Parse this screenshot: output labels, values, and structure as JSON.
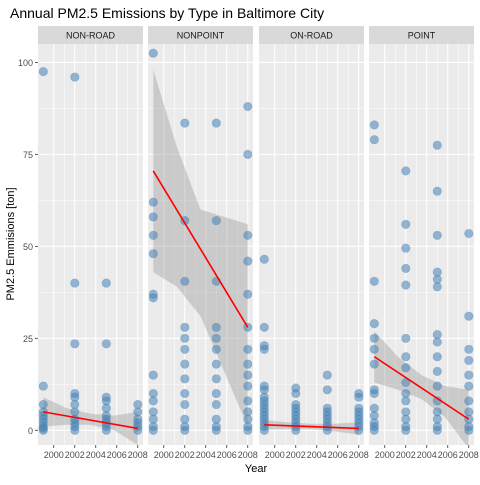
{
  "chart_data": {
    "type": "scatter",
    "title": "Annual PM2.5 Emissions by Type in Baltimore City",
    "xlabel": "Year",
    "ylabel": "PM2.5 Emmisions [ton]",
    "x_ticks": [
      "2000",
      "2002",
      "2004",
      "2006",
      "2008"
    ],
    "x_tick_values": [
      2000,
      2002,
      2004,
      2006,
      2008
    ],
    "y_ticks": [
      "0",
      "25",
      "50",
      "75",
      "100"
    ],
    "y_tick_values": [
      0,
      25,
      50,
      75,
      100
    ],
    "xlim": [
      1998.5,
      2008.5
    ],
    "ylim": [
      -4,
      105
    ],
    "point_color": "#4682B4",
    "fit_color": "#FF0000",
    "band_color": "#999999",
    "panel_bg": "#EBEBEB",
    "strip_bg": "#D9D9D9",
    "panels": [
      {
        "name": "NON-ROAD",
        "points": [
          {
            "x": 1999,
            "y": 97.5
          },
          {
            "x": 1999,
            "y": 12
          },
          {
            "x": 1999,
            "y": 7
          },
          {
            "x": 1999,
            "y": 5
          },
          {
            "x": 1999,
            "y": 4
          },
          {
            "x": 1999,
            "y": 3
          },
          {
            "x": 1999,
            "y": 2
          },
          {
            "x": 1999,
            "y": 1
          },
          {
            "x": 1999,
            "y": 0.5
          },
          {
            "x": 1999,
            "y": 0
          },
          {
            "x": 2002,
            "y": 96
          },
          {
            "x": 2002,
            "y": 40
          },
          {
            "x": 2002,
            "y": 23.5
          },
          {
            "x": 2002,
            "y": 10
          },
          {
            "x": 2002,
            "y": 9
          },
          {
            "x": 2002,
            "y": 7
          },
          {
            "x": 2002,
            "y": 5
          },
          {
            "x": 2002,
            "y": 3
          },
          {
            "x": 2002,
            "y": 2
          },
          {
            "x": 2002,
            "y": 1
          },
          {
            "x": 2002,
            "y": 0
          },
          {
            "x": 2005,
            "y": 40
          },
          {
            "x": 2005,
            "y": 23.5
          },
          {
            "x": 2005,
            "y": 9
          },
          {
            "x": 2005,
            "y": 8
          },
          {
            "x": 2005,
            "y": 6
          },
          {
            "x": 2005,
            "y": 4
          },
          {
            "x": 2005,
            "y": 3
          },
          {
            "x": 2005,
            "y": 2
          },
          {
            "x": 2005,
            "y": 1
          },
          {
            "x": 2005,
            "y": 0
          },
          {
            "x": 2008,
            "y": 7
          },
          {
            "x": 2008,
            "y": 5
          },
          {
            "x": 2008,
            "y": 3
          },
          {
            "x": 2008,
            "y": 2
          },
          {
            "x": 2008,
            "y": 1
          },
          {
            "x": 2008,
            "y": 0
          }
        ],
        "fit": {
          "x": [
            1999,
            2008
          ],
          "y": [
            5,
            0.5
          ]
        },
        "band": {
          "x": [
            1999,
            2001.25,
            2003.5,
            2005.75,
            2008
          ],
          "upper": [
            9,
            6,
            4.5,
            4,
            5
          ],
          "lower": [
            1,
            1.5,
            1.5,
            0,
            -4
          ]
        }
      },
      {
        "name": "NONPOINT",
        "points": [
          {
            "x": 1999,
            "y": 102.5
          },
          {
            "x": 1999,
            "y": 62
          },
          {
            "x": 1999,
            "y": 58
          },
          {
            "x": 1999,
            "y": 53
          },
          {
            "x": 1999,
            "y": 48
          },
          {
            "x": 1999,
            "y": 37
          },
          {
            "x": 1999,
            "y": 36
          },
          {
            "x": 1999,
            "y": 15
          },
          {
            "x": 1999,
            "y": 10
          },
          {
            "x": 1999,
            "y": 8
          },
          {
            "x": 1999,
            "y": 5
          },
          {
            "x": 1999,
            "y": 3
          },
          {
            "x": 1999,
            "y": 1
          },
          {
            "x": 1999,
            "y": 0
          },
          {
            "x": 2002,
            "y": 83.5
          },
          {
            "x": 2002,
            "y": 57
          },
          {
            "x": 2002,
            "y": 40.5
          },
          {
            "x": 2002,
            "y": 28
          },
          {
            "x": 2002,
            "y": 25
          },
          {
            "x": 2002,
            "y": 22
          },
          {
            "x": 2002,
            "y": 18
          },
          {
            "x": 2002,
            "y": 14
          },
          {
            "x": 2002,
            "y": 10
          },
          {
            "x": 2002,
            "y": 7
          },
          {
            "x": 2002,
            "y": 3
          },
          {
            "x": 2002,
            "y": 1
          },
          {
            "x": 2002,
            "y": 0
          },
          {
            "x": 2005,
            "y": 83.5
          },
          {
            "x": 2005,
            "y": 57
          },
          {
            "x": 2005,
            "y": 40.5
          },
          {
            "x": 2005,
            "y": 28
          },
          {
            "x": 2005,
            "y": 25
          },
          {
            "x": 2005,
            "y": 22
          },
          {
            "x": 2005,
            "y": 18
          },
          {
            "x": 2005,
            "y": 14
          },
          {
            "x": 2005,
            "y": 10
          },
          {
            "x": 2005,
            "y": 7
          },
          {
            "x": 2005,
            "y": 3
          },
          {
            "x": 2005,
            "y": 1
          },
          {
            "x": 2005,
            "y": 0
          },
          {
            "x": 2008,
            "y": 88
          },
          {
            "x": 2008,
            "y": 75
          },
          {
            "x": 2008,
            "y": 53
          },
          {
            "x": 2008,
            "y": 46
          },
          {
            "x": 2008,
            "y": 37
          },
          {
            "x": 2008,
            "y": 28
          },
          {
            "x": 2008,
            "y": 22
          },
          {
            "x": 2008,
            "y": 18
          },
          {
            "x": 2008,
            "y": 15
          },
          {
            "x": 2008,
            "y": 12
          },
          {
            "x": 2008,
            "y": 8
          },
          {
            "x": 2008,
            "y": 5
          },
          {
            "x": 2008,
            "y": 3
          },
          {
            "x": 2008,
            "y": 1
          },
          {
            "x": 2008,
            "y": 0
          }
        ],
        "fit": {
          "x": [
            1999,
            2008
          ],
          "y": [
            70.5,
            28
          ]
        },
        "band": {
          "x": [
            1999,
            2001.25,
            2003.5,
            2005.75,
            2008
          ],
          "upper": [
            98,
            77,
            60,
            58,
            56
          ],
          "lower": [
            43,
            39,
            31,
            16,
            1
          ]
        }
      },
      {
        "name": "ON-ROAD",
        "points": [
          {
            "x": 1999,
            "y": 46.5
          },
          {
            "x": 1999,
            "y": 28
          },
          {
            "x": 1999,
            "y": 23
          },
          {
            "x": 1999,
            "y": 22
          },
          {
            "x": 1999,
            "y": 12
          },
          {
            "x": 1999,
            "y": 11
          },
          {
            "x": 1999,
            "y": 9
          },
          {
            "x": 1999,
            "y": 8
          },
          {
            "x": 1999,
            "y": 7
          },
          {
            "x": 1999,
            "y": 6
          },
          {
            "x": 1999,
            "y": 5
          },
          {
            "x": 1999,
            "y": 4
          },
          {
            "x": 1999,
            "y": 3
          },
          {
            "x": 1999,
            "y": 2
          },
          {
            "x": 1999,
            "y": 1
          },
          {
            "x": 1999,
            "y": 0
          },
          {
            "x": 2002,
            "y": 11.5
          },
          {
            "x": 2002,
            "y": 10
          },
          {
            "x": 2002,
            "y": 7
          },
          {
            "x": 2002,
            "y": 6
          },
          {
            "x": 2002,
            "y": 5
          },
          {
            "x": 2002,
            "y": 4
          },
          {
            "x": 2002,
            "y": 3
          },
          {
            "x": 2002,
            "y": 2
          },
          {
            "x": 2002,
            "y": 1
          },
          {
            "x": 2002,
            "y": 0
          },
          {
            "x": 2005,
            "y": 15
          },
          {
            "x": 2005,
            "y": 11
          },
          {
            "x": 2005,
            "y": 6
          },
          {
            "x": 2005,
            "y": 5
          },
          {
            "x": 2005,
            "y": 4
          },
          {
            "x": 2005,
            "y": 3
          },
          {
            "x": 2005,
            "y": 2
          },
          {
            "x": 2005,
            "y": 1
          },
          {
            "x": 2005,
            "y": 0
          },
          {
            "x": 2008,
            "y": 10
          },
          {
            "x": 2008,
            "y": 9
          },
          {
            "x": 2008,
            "y": 6
          },
          {
            "x": 2008,
            "y": 5
          },
          {
            "x": 2008,
            "y": 4
          },
          {
            "x": 2008,
            "y": 3
          },
          {
            "x": 2008,
            "y": 2
          },
          {
            "x": 2008,
            "y": 1
          },
          {
            "x": 2008,
            "y": 0
          }
        ],
        "fit": {
          "x": [
            1999,
            2008
          ],
          "y": [
            1.5,
            0.5
          ]
        },
        "band": {
          "x": [
            1999,
            2001.25,
            2003.5,
            2005.75,
            2008
          ],
          "upper": [
            2.8,
            2.2,
            1.8,
            1.8,
            2.2
          ],
          "lower": [
            0.2,
            0.3,
            0.3,
            -0.3,
            -1.2
          ]
        }
      },
      {
        "name": "POINT",
        "points": [
          {
            "x": 1999,
            "y": 83
          },
          {
            "x": 1999,
            "y": 79
          },
          {
            "x": 1999,
            "y": 40.5
          },
          {
            "x": 1999,
            "y": 29
          },
          {
            "x": 1999,
            "y": 25
          },
          {
            "x": 1999,
            "y": 22
          },
          {
            "x": 1999,
            "y": 18
          },
          {
            "x": 1999,
            "y": 11
          },
          {
            "x": 1999,
            "y": 10
          },
          {
            "x": 1999,
            "y": 6
          },
          {
            "x": 1999,
            "y": 4
          },
          {
            "x": 1999,
            "y": 2
          },
          {
            "x": 1999,
            "y": 1
          },
          {
            "x": 1999,
            "y": 0
          },
          {
            "x": 2002,
            "y": 70.5
          },
          {
            "x": 2002,
            "y": 56
          },
          {
            "x": 2002,
            "y": 49.5
          },
          {
            "x": 2002,
            "y": 44
          },
          {
            "x": 2002,
            "y": 39.5
          },
          {
            "x": 2002,
            "y": 25
          },
          {
            "x": 2002,
            "y": 20
          },
          {
            "x": 2002,
            "y": 17
          },
          {
            "x": 2002,
            "y": 13
          },
          {
            "x": 2002,
            "y": 10
          },
          {
            "x": 2002,
            "y": 8
          },
          {
            "x": 2002,
            "y": 5
          },
          {
            "x": 2002,
            "y": 3
          },
          {
            "x": 2002,
            "y": 1
          },
          {
            "x": 2002,
            "y": 0
          },
          {
            "x": 2005,
            "y": 77.5
          },
          {
            "x": 2005,
            "y": 65
          },
          {
            "x": 2005,
            "y": 53
          },
          {
            "x": 2005,
            "y": 43
          },
          {
            "x": 2005,
            "y": 41
          },
          {
            "x": 2005,
            "y": 39
          },
          {
            "x": 2005,
            "y": 26
          },
          {
            "x": 2005,
            "y": 24
          },
          {
            "x": 2005,
            "y": 20
          },
          {
            "x": 2005,
            "y": 16
          },
          {
            "x": 2005,
            "y": 12
          },
          {
            "x": 2005,
            "y": 8
          },
          {
            "x": 2005,
            "y": 5
          },
          {
            "x": 2005,
            "y": 3
          },
          {
            "x": 2005,
            "y": 1
          },
          {
            "x": 2005,
            "y": 0
          },
          {
            "x": 2008,
            "y": 53.5
          },
          {
            "x": 2008,
            "y": 31
          },
          {
            "x": 2008,
            "y": 22
          },
          {
            "x": 2008,
            "y": 19
          },
          {
            "x": 2008,
            "y": 15
          },
          {
            "x": 2008,
            "y": 12
          },
          {
            "x": 2008,
            "y": 8
          },
          {
            "x": 2008,
            "y": 5
          },
          {
            "x": 2008,
            "y": 3
          },
          {
            "x": 2008,
            "y": 1
          },
          {
            "x": 2008,
            "y": 0
          }
        ],
        "fit": {
          "x": [
            1999,
            2008
          ],
          "y": [
            20,
            3
          ]
        },
        "band": {
          "x": [
            1999,
            2001.25,
            2003.5,
            2005.75,
            2008
          ],
          "upper": [
            27,
            20,
            15,
            12,
            11
          ],
          "lower": [
            13,
            11,
            8.5,
            3.5,
            -5
          ]
        }
      }
    ]
  }
}
